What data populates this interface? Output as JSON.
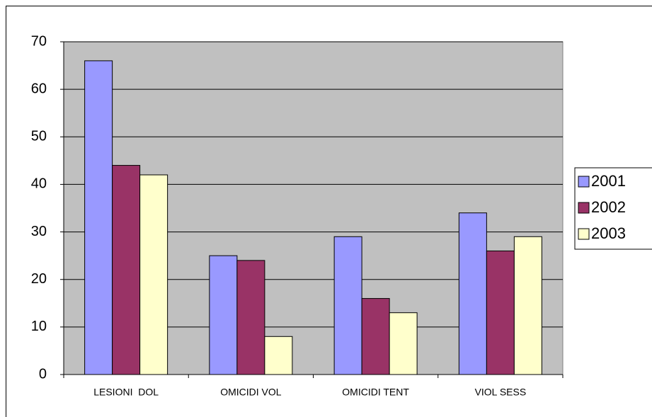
{
  "chart_data": {
    "type": "bar",
    "categories": [
      "LESIONI  DOL",
      "OMICIDI VOL",
      "OMICIDI TENT",
      "VIOL SESS"
    ],
    "series": [
      {
        "name": "2001",
        "color": "#9999ff",
        "values": [
          66,
          25,
          29,
          34
        ]
      },
      {
        "name": "2002",
        "color": "#993366",
        "values": [
          44,
          24,
          16,
          26
        ]
      },
      {
        "name": "2003",
        "color": "#ffffcc",
        "values": [
          42,
          8,
          13,
          29
        ]
      }
    ],
    "ylim": [
      0,
      70
    ],
    "yticks": [
      0,
      10,
      20,
      30,
      40,
      50,
      60,
      70
    ],
    "grid": true,
    "plot_background": "#c0c0c0",
    "legend": "right"
  }
}
